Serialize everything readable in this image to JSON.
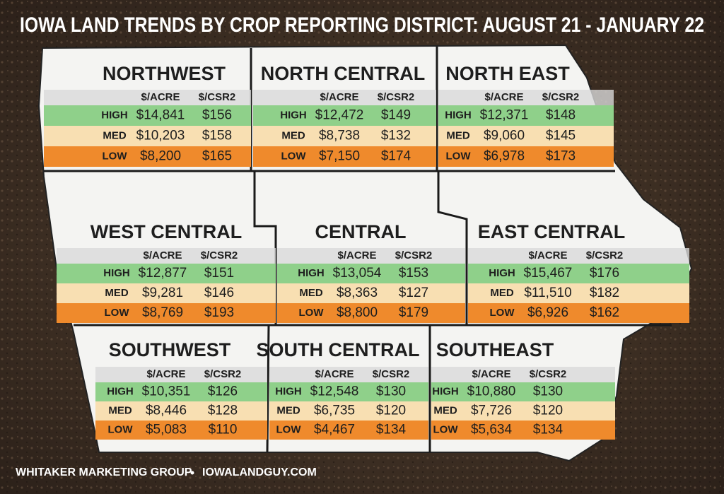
{
  "title": "IOWA LAND TRENDS BY CROP REPORTING DISTRICT: AUGUST 21 - JANUARY 22",
  "footer": {
    "left": "WHITAKER MARKETING GROUP",
    "right": "IOWALANDGUY.COM"
  },
  "districts": [
    {
      "name": "NORTHWEST",
      "columns": [
        "$/ACRE",
        "$/CSR2"
      ],
      "rows": [
        {
          "label": "HIGH",
          "acre": "$14,841",
          "csr2": "$156"
        },
        {
          "label": "MED",
          "acre": "$10,203",
          "csr2": "$158"
        },
        {
          "label": "LOW",
          "acre": "$8,200",
          "csr2": "$165"
        }
      ]
    },
    {
      "name": "NORTH CENTRAL",
      "columns": [
        "$/ACRE",
        "$/CSR2"
      ],
      "rows": [
        {
          "label": "HIGH",
          "acre": "$12,472",
          "csr2": "$149"
        },
        {
          "label": "MED",
          "acre": "$8,738",
          "csr2": "$132"
        },
        {
          "label": "LOW",
          "acre": "$7,150",
          "csr2": "$174"
        }
      ]
    },
    {
      "name": "NORTH EAST",
      "columns": [
        "$/ACRE",
        "$/CSR2"
      ],
      "rows": [
        {
          "label": "HIGH",
          "acre": "$12,371",
          "csr2": "$148"
        },
        {
          "label": "MED",
          "acre": "$9,060",
          "csr2": "$145"
        },
        {
          "label": "LOW",
          "acre": "$6,978",
          "csr2": "$173"
        }
      ]
    },
    {
      "name": "WEST CENTRAL",
      "columns": [
        "$/ACRE",
        "$/CSR2"
      ],
      "rows": [
        {
          "label": "HIGH",
          "acre": "$12,877",
          "csr2": "$151"
        },
        {
          "label": "MED",
          "acre": "$9,281",
          "csr2": "$146"
        },
        {
          "label": "LOW",
          "acre": "$8,769",
          "csr2": "$193"
        }
      ]
    },
    {
      "name": "CENTRAL",
      "columns": [
        "$/ACRE",
        "$/CSR2"
      ],
      "rows": [
        {
          "label": "HIGH",
          "acre": "$13,054",
          "csr2": "$153"
        },
        {
          "label": "MED",
          "acre": "$8,363",
          "csr2": "$127"
        },
        {
          "label": "LOW",
          "acre": "$8,800",
          "csr2": "$179"
        }
      ]
    },
    {
      "name": "EAST CENTRAL",
      "columns": [
        "$/ACRE",
        "$/CSR2"
      ],
      "rows": [
        {
          "label": "HIGH",
          "acre": "$15,467",
          "csr2": "$176"
        },
        {
          "label": "MED",
          "acre": "$11,510",
          "csr2": "$182"
        },
        {
          "label": "LOW",
          "acre": "$6,926",
          "csr2": "$162"
        }
      ]
    },
    {
      "name": "SOUTHWEST",
      "columns": [
        "$/ACRE",
        "$/CSR2"
      ],
      "rows": [
        {
          "label": "HIGH",
          "acre": "$10,351",
          "csr2": "$126"
        },
        {
          "label": "MED",
          "acre": "$8,446",
          "csr2": "$128"
        },
        {
          "label": "LOW",
          "acre": "$5,083",
          "csr2": "$110"
        }
      ]
    },
    {
      "name": "SOUTH CENTRAL",
      "columns": [
        "$/ACRE",
        "$/CSR2"
      ],
      "rows": [
        {
          "label": "HIGH",
          "acre": "$12,548",
          "csr2": "$130"
        },
        {
          "label": "MED",
          "acre": "$6,735",
          "csr2": "$120"
        },
        {
          "label": "LOW",
          "acre": "$4,467",
          "csr2": "$134"
        }
      ]
    },
    {
      "name": "SOUTHEAST",
      "columns": [
        "$/ACRE",
        "$/CSR2"
      ],
      "rows": [
        {
          "label": "HIGH",
          "acre": "$10,880",
          "csr2": "$130"
        },
        {
          "label": "MED",
          "acre": "$7,726",
          "csr2": "$120"
        },
        {
          "label": "LOW",
          "acre": "$5,634",
          "csr2": "$134"
        }
      ]
    }
  ]
}
